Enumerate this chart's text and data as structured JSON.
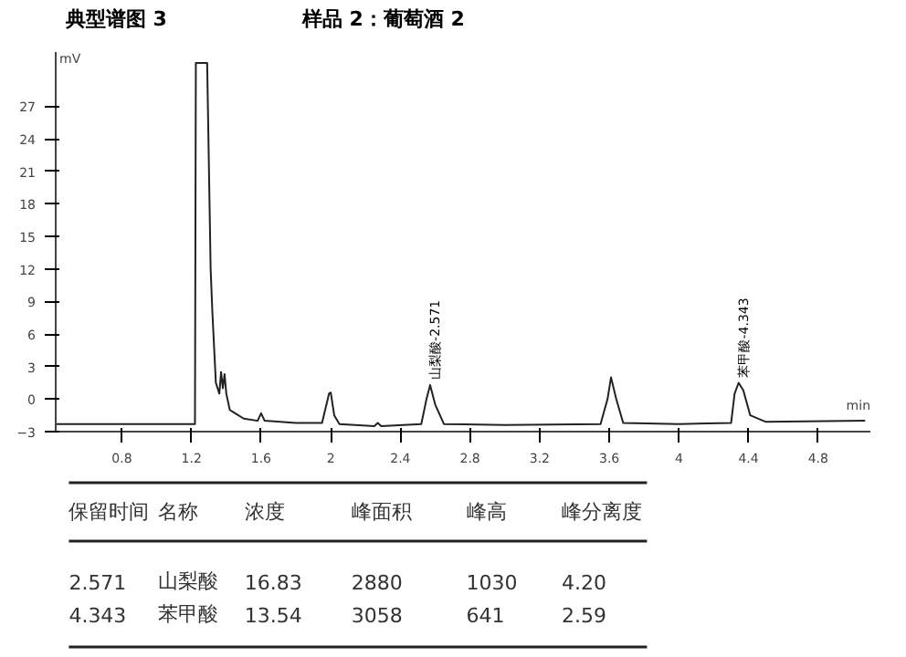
{
  "chart_data": {
    "type": "line",
    "title": "典型谱图 3",
    "subtitle": "样品 2：葡萄酒 2",
    "xlabel": "min",
    "ylabel": "mV",
    "x": [
      0.42,
      1.22,
      1.225,
      1.29,
      1.31,
      1.32,
      1.34,
      1.36,
      1.37,
      1.38,
      1.39,
      1.4,
      1.42,
      1.5,
      1.58,
      1.6,
      1.62,
      1.8,
      1.95,
      1.99,
      2.0,
      2.02,
      2.05,
      2.25,
      2.27,
      2.29,
      2.52,
      2.55,
      2.571,
      2.6,
      2.65,
      3.0,
      3.55,
      3.59,
      3.61,
      3.64,
      3.68,
      4.0,
      4.3,
      4.32,
      4.343,
      4.37,
      4.41,
      4.5,
      5.07
    ],
    "series": [
      {
        "color": "#222222",
        "values": [
          -2.3,
          -2.3,
          31,
          31,
          12,
          8,
          1.5,
          0.5,
          2.5,
          1,
          2.3,
          0.5,
          -1,
          -1.8,
          -2,
          -1.3,
          -2,
          -2.2,
          -2.2,
          0.5,
          0.6,
          -1.5,
          -2.3,
          -2.5,
          -2.2,
          -2.5,
          -2.3,
          0,
          1.3,
          -0.5,
          -2.3,
          -2.4,
          -2.3,
          0,
          2,
          0,
          -2.2,
          -2.3,
          -2.2,
          0.5,
          1.5,
          0.8,
          -1.5,
          -2.1,
          -2
        ]
      }
    ],
    "xlim": [
      0.42,
      5.1
    ],
    "ylim": [
      -3,
      32
    ],
    "xticks": [
      0.8,
      1.2,
      1.6,
      2,
      2.4,
      2.8,
      3.2,
      3.6,
      4,
      4.4,
      4.8
    ],
    "yticks": [
      -3,
      0,
      3,
      6,
      9,
      12,
      15,
      18,
      21,
      24,
      27
    ],
    "grid": false,
    "marker": "none",
    "line_style": "solid",
    "annotations": [
      {
        "text": "山梨酸-2.571",
        "x": 2.571,
        "y": 1.3
      },
      {
        "text": "苯甲酸-4.343",
        "x": 4.343,
        "y": 1.5
      },
      "保留时间",
      "名称",
      "浓度",
      "峰面积",
      "峰高",
      "峰分离度",
      "2.571",
      "山梨酸",
      "16.83",
      "2880",
      "1030",
      "4.20",
      "4.343",
      "苯甲酸",
      "13.54",
      "3058",
      "641",
      "2.59"
    ]
  }
}
